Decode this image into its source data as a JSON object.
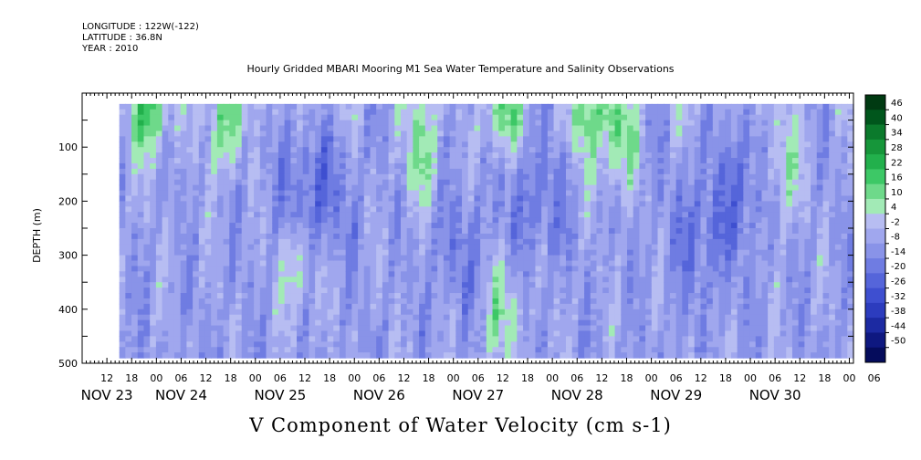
{
  "header": {
    "longitude": "LONGITUDE : 122W(-122)",
    "latitude": "LATITUDE : 36.8N",
    "year": "YEAR : 2010"
  },
  "title": "Hourly Gridded MBARI Mooring M1 Sea Water Temperature and Salinity Observations",
  "bottom_title": "V Component of Water Velocity (cm s-1)",
  "chart_data": {
    "type": "heatmap",
    "variable": "V Component of Water Velocity",
    "units": "cm s-1",
    "ylabel": "DEPTH (m)",
    "ylim": [
      500,
      0
    ],
    "y_ticks": [
      100,
      200,
      300,
      400,
      500
    ],
    "x_hour_ticks": [
      "12",
      "18",
      "00",
      "06",
      "12",
      "18",
      "00",
      "06",
      "12",
      "18",
      "00",
      "06",
      "12",
      "18",
      "00",
      "06",
      "12",
      "18",
      "00",
      "06",
      "12",
      "18",
      "00",
      "06",
      "12",
      "18",
      "00",
      "06",
      "12",
      "18",
      "00",
      "06"
    ],
    "x_day_labels": [
      "NOV 23",
      "NOV 24",
      "NOV 25",
      "NOV 26",
      "NOV 27",
      "NOV 28",
      "NOV 29",
      "NOV 30"
    ],
    "x_range_hours_from_nov23_00": [
      6,
      193
    ],
    "data_time_range_hours_from_nov23_00": [
      15,
      193
    ],
    "data_depth_range": [
      20,
      490
    ],
    "colorbar": {
      "labels": [
        "46",
        "40",
        "34",
        "28",
        "22",
        "16",
        "10",
        "4",
        "-2",
        "-8",
        "-14",
        "-20",
        "-26",
        "-32",
        "-38",
        "-44",
        "-50"
      ],
      "colors": [
        "#003a12",
        "#00561c",
        "#0b7a2c",
        "#16963a",
        "#22b04c",
        "#3dc866",
        "#6ed98a",
        "#a2eab6",
        "#b7bdf2",
        "#a0a7ee",
        "#8993e8",
        "#6f7ce2",
        "#5565da",
        "#3e4fd0",
        "#2c3cbe",
        "#1c2aa2",
        "#0e1880",
        "#050c5c"
      ],
      "min": -50,
      "max": 50
    },
    "patterns": {
      "positive_regions": [
        {
          "time": 22,
          "depth": 30,
          "value": 14
        },
        {
          "time": 40,
          "depth": 60,
          "value": 10
        },
        {
          "time": 88,
          "depth": 110,
          "value": 8
        },
        {
          "time": 108,
          "depth": 30,
          "value": 10
        },
        {
          "time": 128,
          "depth": 50,
          "value": 8
        },
        {
          "time": 136,
          "depth": 80,
          "value": 12
        },
        {
          "time": 176,
          "depth": 140,
          "value": 10
        },
        {
          "time": 108,
          "depth": 400,
          "value": 8
        },
        {
          "time": 58,
          "depth": 320,
          "value": 6
        }
      ],
      "negative_regions": [
        {
          "time": 62,
          "depth": 190,
          "value": -18
        },
        {
          "time": 116,
          "depth": 200,
          "value": -14
        },
        {
          "time": 157,
          "depth": 260,
          "value": -16
        },
        {
          "time": 168,
          "depth": 150,
          "value": -14
        },
        {
          "time": 98,
          "depth": 300,
          "value": -12
        }
      ]
    }
  }
}
